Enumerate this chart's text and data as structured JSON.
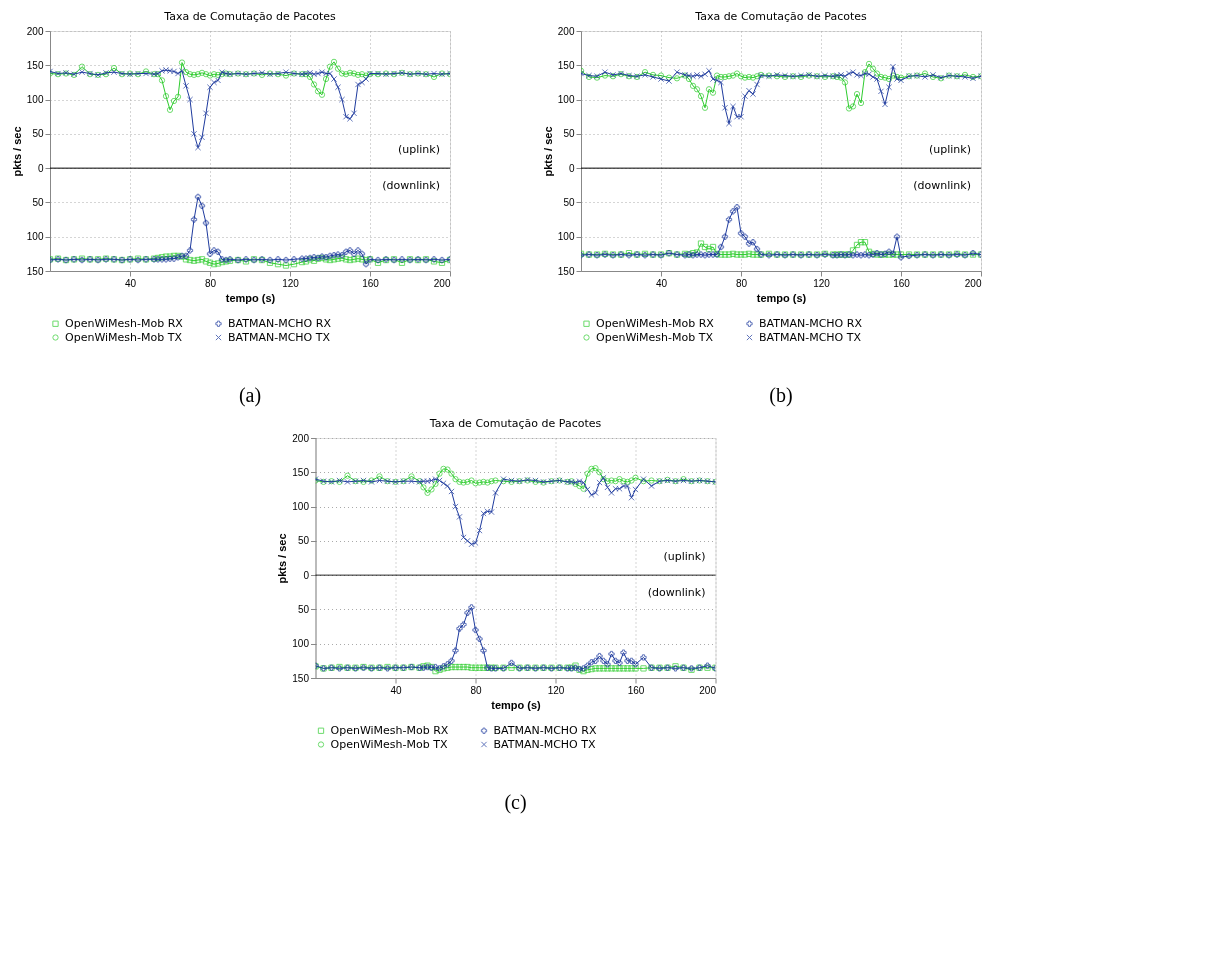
{
  "chart_data": [
    {
      "type": "line",
      "title": "Taxa de Comutação de Pacotes",
      "xlabel": "tempo (s)",
      "ylabel": "pkts / sec",
      "annotations": [
        "(uplink)",
        "(downlink)",
        "(a)"
      ],
      "x": [
        0,
        4,
        8,
        12,
        16,
        20,
        24,
        28,
        32,
        36,
        40,
        44,
        48,
        52,
        54,
        56,
        58,
        60,
        62,
        64,
        66,
        68,
        70,
        72,
        74,
        76,
        78,
        80,
        82,
        84,
        86,
        88,
        90,
        94,
        98,
        102,
        106,
        110,
        114,
        118,
        122,
        126,
        128,
        130,
        132,
        134,
        136,
        138,
        140,
        142,
        144,
        146,
        148,
        150,
        152,
        154,
        156,
        158,
        160,
        164,
        168,
        172,
        176,
        180,
        184,
        188,
        192,
        196,
        200
      ],
      "xlim": [
        0,
        200
      ],
      "xticks": [
        40,
        80,
        120,
        160,
        200
      ],
      "ylim": [
        -150,
        200
      ],
      "yticks": [
        {
          "value": -150,
          "label": "150"
        },
        {
          "value": -100,
          "label": "100"
        },
        {
          "value": -50,
          "label": "50"
        },
        0,
        50,
        100,
        150,
        200
      ],
      "grid": true,
      "legend": "bottom",
      "line_style": "solid",
      "ref_lines": [
        {
          "axis": "y",
          "value": 0,
          "color": "#000000"
        }
      ],
      "series": [
        {
          "name": "OpenWiMesh-Mob RX",
          "color": "#2ecc2e",
          "marker": "square",
          "values": [
            -133,
            -132,
            -134,
            -133,
            -132,
            -133,
            -133,
            -132,
            -133,
            -134,
            -133,
            -132,
            -133,
            -132,
            -131,
            -130,
            -129,
            -129,
            -128,
            -128,
            -129,
            -133,
            -134,
            -135,
            -134,
            -133,
            -136,
            -138,
            -140,
            -139,
            -137,
            -136,
            -135,
            -134,
            -136,
            -133,
            -134,
            -138,
            -140,
            -142,
            -140,
            -137,
            -136,
            -133,
            -135,
            -132,
            -131,
            -133,
            -134,
            -133,
            -132,
            -131,
            -133,
            -134,
            -133,
            -132,
            -133,
            -134,
            -133,
            -138,
            -134,
            -133,
            -138,
            -133,
            -134,
            -133,
            -136,
            -138,
            -134
          ]
        },
        {
          "name": "OpenWiMesh-Mob TX",
          "color": "#2ecc2e",
          "marker": "circle",
          "values": [
            138,
            137,
            138,
            136,
            148,
            137,
            136,
            137,
            146,
            137,
            138,
            137,
            141,
            137,
            137,
            128,
            105,
            85,
            98,
            104,
            154,
            140,
            137,
            136,
            137,
            139,
            137,
            135,
            137,
            136,
            137,
            138,
            137,
            138,
            137,
            138,
            136,
            138,
            137,
            135,
            138,
            137,
            137,
            133,
            122,
            112,
            107,
            130,
            148,
            155,
            145,
            138,
            137,
            139,
            138,
            136,
            137,
            135,
            137,
            137,
            138,
            137,
            139,
            137,
            138,
            137,
            133,
            138,
            137
          ]
        },
        {
          "name": "BATMAN-MCHO RX",
          "color": "#1f3b9e",
          "marker": "plus",
          "values": [
            -134,
            -133,
            -134,
            -133,
            -134,
            -133,
            -134,
            -133,
            -133,
            -134,
            -133,
            -134,
            -133,
            -133,
            -133,
            -133,
            -133,
            -132,
            -132,
            -130,
            -128,
            -128,
            -120,
            -75,
            -42,
            -55,
            -80,
            -125,
            -120,
            -122,
            -133,
            -134,
            -133,
            -134,
            -133,
            -134,
            -133,
            -134,
            -133,
            -134,
            -133,
            -132,
            -132,
            -131,
            -130,
            -131,
            -129,
            -130,
            -128,
            -127,
            -126,
            -127,
            -122,
            -120,
            -125,
            -120,
            -125,
            -140,
            -133,
            -134,
            -133,
            -134,
            -133,
            -134,
            -133,
            -134,
            -133,
            -134,
            -133
          ]
        },
        {
          "name": "BATMAN-MCHO TX",
          "color": "#1f3b9e",
          "marker": "cross",
          "values": [
            141,
            138,
            139,
            137,
            140,
            138,
            136,
            139,
            140,
            138,
            137,
            138,
            138,
            137,
            138,
            142,
            143,
            142,
            141,
            138,
            142,
            120,
            100,
            50,
            30,
            45,
            80,
            118,
            125,
            128,
            140,
            138,
            137,
            138,
            137,
            138,
            139,
            137,
            138,
            140,
            138,
            137,
            138,
            139,
            137,
            138,
            140,
            138,
            138,
            130,
            118,
            100,
            75,
            72,
            80,
            122,
            125,
            130,
            138,
            138,
            137,
            138,
            139,
            137,
            138,
            137,
            138,
            137,
            138
          ]
        }
      ]
    },
    {
      "type": "line",
      "title": "Taxa de Comutação de Pacotes",
      "xlabel": "tempo (s)",
      "ylabel": "pkts / sec",
      "annotations": [
        "(uplink)",
        "(downlink)",
        "(b)"
      ],
      "x": [
        0,
        4,
        8,
        12,
        16,
        20,
        24,
        28,
        32,
        36,
        40,
        44,
        48,
        52,
        54,
        56,
        58,
        60,
        62,
        64,
        66,
        68,
        70,
        72,
        74,
        76,
        78,
        80,
        82,
        84,
        86,
        88,
        90,
        94,
        98,
        102,
        106,
        110,
        114,
        118,
        122,
        126,
        128,
        130,
        132,
        134,
        136,
        138,
        140,
        142,
        144,
        146,
        148,
        150,
        152,
        154,
        156,
        158,
        160,
        164,
        168,
        172,
        176,
        180,
        184,
        188,
        192,
        196,
        200
      ],
      "xlim": [
        0,
        200
      ],
      "xticks": [
        40,
        80,
        120,
        160,
        200
      ],
      "ylim": [
        -150,
        200
      ],
      "yticks": [
        {
          "value": -150,
          "label": "150"
        },
        {
          "value": -100,
          "label": "100"
        },
        {
          "value": -50,
          "label": "50"
        },
        0,
        50,
        100,
        150,
        200
      ],
      "grid": true,
      "legend": "bottom",
      "line_style": "solid",
      "ref_lines": [
        {
          "axis": "y",
          "value": 0,
          "color": "#000000"
        }
      ],
      "series": [
        {
          "name": "OpenWiMesh-Mob RX",
          "color": "#2ecc2e",
          "marker": "square",
          "values": [
            -125,
            -126,
            -126,
            -125,
            -126,
            -126,
            -124,
            -126,
            -125,
            -126,
            -126,
            -124,
            -126,
            -125,
            -126,
            -124,
            -123,
            -110,
            -115,
            -118,
            -115,
            -125,
            -126,
            -126,
            -126,
            -125,
            -126,
            -126,
            -126,
            -125,
            -126,
            -126,
            -126,
            -125,
            -126,
            -126,
            -126,
            -126,
            -126,
            -126,
            -125,
            -126,
            -126,
            -126,
            -126,
            -126,
            -120,
            -112,
            -108,
            -108,
            -122,
            -125,
            -126,
            -126,
            -126,
            -126,
            -126,
            -126,
            -126,
            -126,
            -126,
            -126,
            -126,
            -126,
            -126,
            -125,
            -126,
            -126,
            -126
          ]
        },
        {
          "name": "OpenWiMesh-Mob TX",
          "color": "#2ecc2e",
          "marker": "circle",
          "values": [
            142,
            133,
            132,
            135,
            134,
            137,
            134,
            133,
            140,
            136,
            135,
            132,
            131,
            135,
            130,
            120,
            115,
            105,
            88,
            115,
            110,
            135,
            133,
            133,
            134,
            135,
            138,
            134,
            132,
            133,
            132,
            134,
            136,
            135,
            134,
            133,
            134,
            133,
            135,
            134,
            133,
            134,
            133,
            132,
            125,
            87,
            90,
            108,
            95,
            140,
            152,
            145,
            138,
            133,
            132,
            130,
            135,
            133,
            132,
            134,
            135,
            138,
            133,
            131,
            135,
            134,
            136,
            133,
            134
          ]
        },
        {
          "name": "BATMAN-MCHO RX",
          "color": "#1f3b9e",
          "marker": "plus",
          "values": [
            -127,
            -126,
            -127,
            -126,
            -127,
            -126,
            -127,
            -126,
            -127,
            -126,
            -127,
            -124,
            -126,
            -127,
            -126,
            -127,
            -126,
            -126,
            -127,
            -126,
            -126,
            -126,
            -115,
            -100,
            -75,
            -63,
            -57,
            -95,
            -100,
            -110,
            -108,
            -118,
            -126,
            -127,
            -126,
            -127,
            -126,
            -127,
            -126,
            -127,
            -126,
            -127,
            -127,
            -126,
            -127,
            -126,
            -127,
            -126,
            -127,
            -126,
            -127,
            -126,
            -124,
            -126,
            -125,
            -122,
            -125,
            -100,
            -130,
            -128,
            -127,
            -126,
            -127,
            -126,
            -127,
            -126,
            -127,
            -124,
            -126
          ]
        },
        {
          "name": "BATMAN-MCHO TX",
          "color": "#1f3b9e",
          "marker": "cross",
          "values": [
            138,
            135,
            134,
            140,
            136,
            138,
            135,
            134,
            136,
            133,
            130,
            127,
            140,
            136,
            135,
            134,
            136,
            134,
            137,
            142,
            130,
            128,
            125,
            88,
            65,
            90,
            75,
            75,
            105,
            113,
            108,
            122,
            135,
            134,
            136,
            135,
            134,
            135,
            136,
            134,
            135,
            134,
            135,
            136,
            134,
            138,
            140,
            136,
            135,
            138,
            137,
            133,
            130,
            112,
            93,
            118,
            148,
            130,
            128,
            134,
            135,
            133,
            136,
            132,
            135,
            134,
            133,
            131,
            134
          ]
        }
      ]
    },
    {
      "type": "line",
      "title": "Taxa de Comutação de Pacotes",
      "xlabel": "tempo (s)",
      "ylabel": "pkts / sec",
      "annotations": [
        "(uplink)",
        "(downlink)",
        "(c)"
      ],
      "x": [
        0,
        4,
        8,
        12,
        16,
        20,
        24,
        28,
        32,
        36,
        40,
        44,
        48,
        52,
        54,
        56,
        58,
        60,
        62,
        64,
        66,
        68,
        70,
        72,
        74,
        76,
        78,
        80,
        82,
        84,
        86,
        88,
        90,
        94,
        98,
        102,
        106,
        110,
        114,
        118,
        122,
        126,
        128,
        130,
        132,
        134,
        136,
        138,
        140,
        142,
        144,
        146,
        148,
        150,
        152,
        154,
        156,
        158,
        160,
        164,
        168,
        172,
        176,
        180,
        184,
        188,
        192,
        196,
        200
      ],
      "xlim": [
        0,
        200
      ],
      "xticks": [
        40,
        80,
        120,
        160,
        200
      ],
      "ylim": [
        -150,
        200
      ],
      "yticks": [
        {
          "value": -150,
          "label": "150"
        },
        {
          "value": -100,
          "label": "100"
        },
        {
          "value": -50,
          "label": "50"
        },
        0,
        50,
        100,
        150,
        200
      ],
      "grid": true,
      "legend": "bottom",
      "line_style": "solid",
      "ref_lines": [
        {
          "axis": "y",
          "value": 0,
          "color": "#000000"
        }
      ],
      "series": [
        {
          "name": "OpenWiMesh-Mob RX",
          "color": "#2ecc2e",
          "marker": "square",
          "values": [
            -133,
            -136,
            -135,
            -134,
            -135,
            -135,
            -134,
            -135,
            -135,
            -134,
            -135,
            -135,
            -134,
            -135,
            -133,
            -132,
            -134,
            -140,
            -138,
            -136,
            -135,
            -134,
            -134,
            -134,
            -134,
            -134,
            -135,
            -135,
            -135,
            -135,
            -135,
            -135,
            -135,
            -135,
            -135,
            -135,
            -135,
            -135,
            -135,
            -135,
            -135,
            -135,
            -135,
            -132,
            -138,
            -140,
            -138,
            -137,
            -136,
            -136,
            -136,
            -136,
            -136,
            -136,
            -136,
            -136,
            -136,
            -136,
            -136,
            -136,
            -135,
            -135,
            -135,
            -133,
            -135,
            -138,
            -135,
            -135,
            -135
          ]
        },
        {
          "name": "OpenWiMesh-Mob TX",
          "color": "#2ecc2e",
          "marker": "circle",
          "values": [
            138,
            136,
            137,
            136,
            145,
            137,
            136,
            138,
            144,
            137,
            136,
            137,
            144,
            137,
            128,
            120,
            125,
            133,
            148,
            155,
            154,
            148,
            140,
            136,
            135,
            136,
            138,
            134,
            135,
            136,
            135,
            137,
            138,
            137,
            136,
            137,
            138,
            136,
            135,
            137,
            138,
            136,
            137,
            133,
            130,
            126,
            148,
            155,
            156,
            150,
            140,
            137,
            138,
            137,
            140,
            137,
            136,
            138,
            142,
            137,
            138,
            137,
            139,
            137,
            140,
            137,
            138,
            137,
            136
          ]
        },
        {
          "name": "BATMAN-MCHO RX",
          "color": "#1f3b9e",
          "marker": "plus",
          "values": [
            -132,
            -136,
            -135,
            -136,
            -135,
            -136,
            -135,
            -136,
            -135,
            -136,
            -135,
            -135,
            -134,
            -135,
            -135,
            -134,
            -135,
            -134,
            -136,
            -133,
            -130,
            -125,
            -110,
            -78,
            -72,
            -55,
            -47,
            -80,
            -93,
            -110,
            -135,
            -136,
            -136,
            -136,
            -128,
            -136,
            -135,
            -136,
            -135,
            -136,
            -135,
            -136,
            -136,
            -135,
            -137,
            -136,
            -132,
            -127,
            -125,
            -118,
            -125,
            -130,
            -115,
            -125,
            -128,
            -113,
            -125,
            -125,
            -130,
            -120,
            -135,
            -136,
            -135,
            -136,
            -135,
            -136,
            -135,
            -132,
            -136
          ]
        },
        {
          "name": "BATMAN-MCHO TX",
          "color": "#1f3b9e",
          "marker": "cross",
          "values": [
            140,
            137,
            136,
            138,
            136,
            137,
            138,
            136,
            138,
            137,
            136,
            137,
            137,
            136,
            137,
            137,
            138,
            140,
            138,
            134,
            130,
            122,
            100,
            85,
            55,
            50,
            45,
            47,
            65,
            90,
            93,
            92,
            120,
            140,
            138,
            137,
            139,
            138,
            136,
            137,
            138,
            136,
            136,
            135,
            137,
            135,
            125,
            117,
            120,
            135,
            142,
            128,
            120,
            126,
            126,
            130,
            130,
            113,
            125,
            140,
            130,
            137,
            138,
            137,
            138,
            137,
            138,
            137,
            136
          ]
        }
      ]
    }
  ]
}
